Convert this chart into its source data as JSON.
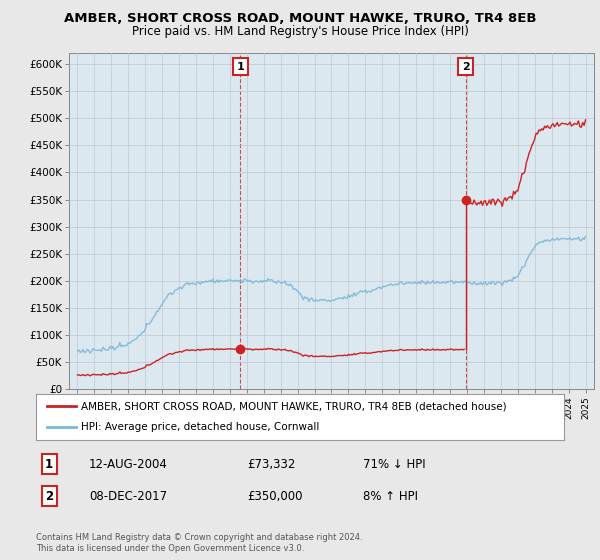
{
  "title": "AMBER, SHORT CROSS ROAD, MOUNT HAWKE, TRURO, TR4 8EB",
  "subtitle": "Price paid vs. HM Land Registry's House Price Index (HPI)",
  "ylim": [
    0,
    620000
  ],
  "yticks": [
    0,
    50000,
    100000,
    150000,
    200000,
    250000,
    300000,
    350000,
    400000,
    450000,
    500000,
    550000,
    600000
  ],
  "ytick_labels": [
    "£0",
    "£50K",
    "£100K",
    "£150K",
    "£200K",
    "£250K",
    "£300K",
    "£350K",
    "£400K",
    "£450K",
    "£500K",
    "£550K",
    "£600K"
  ],
  "hpi_color": "#7ab8d9",
  "price_color": "#cc2222",
  "vline_color": "#cc2222",
  "background_color": "#e8e8e8",
  "plot_bg_color": "#dce8f0",
  "legend_label_price": "AMBER, SHORT CROSS ROAD, MOUNT HAWKE, TRURO, TR4 8EB (detached house)",
  "legend_label_hpi": "HPI: Average price, detached house, Cornwall",
  "purchase1_year": 2004.62,
  "purchase1_price": 73332,
  "purchase1_label": "1",
  "purchase1_date_str": "12-AUG-2004",
  "purchase1_pct": "71% ↓ HPI",
  "purchase2_year": 2017.92,
  "purchase2_price": 350000,
  "purchase2_label": "2",
  "purchase2_date_str": "08-DEC-2017",
  "purchase2_pct": "8% ↑ HPI",
  "footer": "Contains HM Land Registry data © Crown copyright and database right 2024.\nThis data is licensed under the Open Government Licence v3.0.",
  "title_fontsize": 9.5,
  "subtitle_fontsize": 8.5,
  "xmin": 1994.5,
  "xmax": 2025.5
}
